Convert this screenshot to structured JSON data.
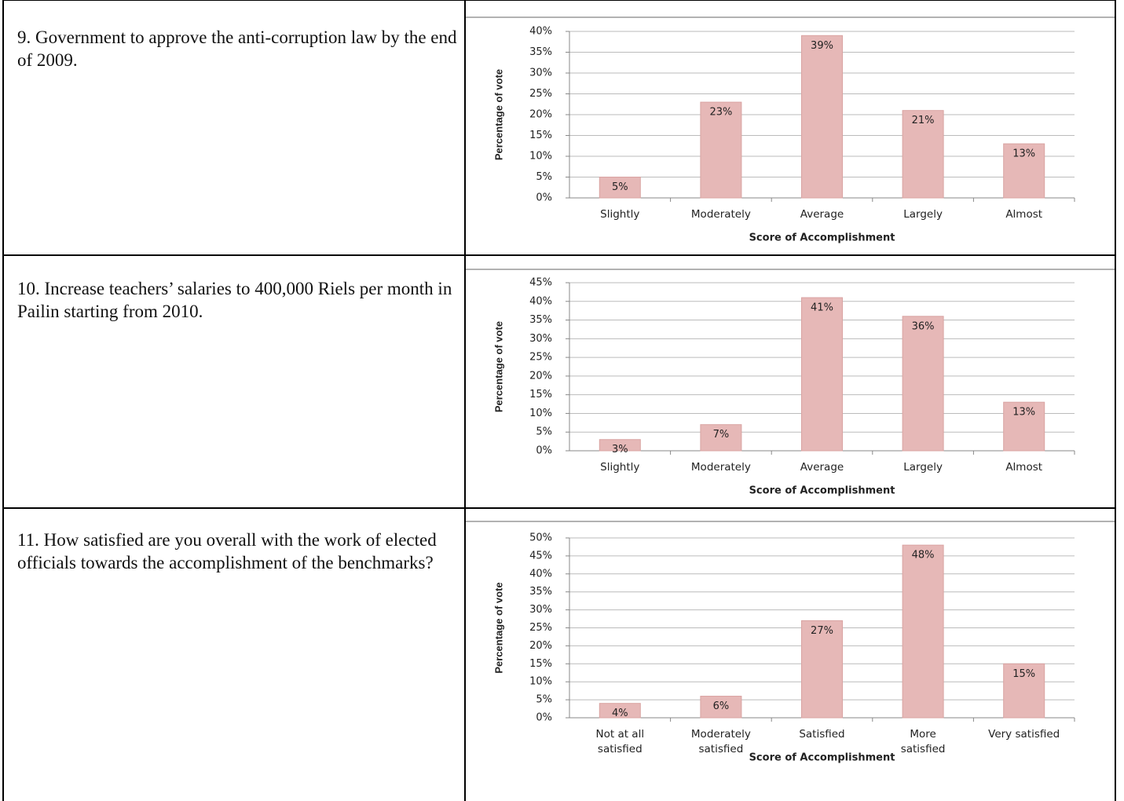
{
  "questions": [
    "9.  Government to approve the anti-corruption law by the end of 2009.",
    "10.  Increase teachers’ salaries to 400,000 Riels per month in Pailin starting from 2010.",
    "11. How satisfied are you overall with the work of elected officials towards the accomplishment of the benchmarks?"
  ],
  "chart_data": [
    {
      "type": "bar",
      "y_label": "Percentage of vote",
      "x_label": "Score of Accomplishment",
      "color": "#e6b8b7",
      "grid": true,
      "categories": [
        "Slightly",
        "Moderately",
        "Average",
        "Largely",
        "Almost"
      ],
      "values": [
        5,
        23,
        39,
        21,
        13
      ],
      "value_labels": [
        "5%",
        "23%",
        "39%",
        "21%",
        "13%"
      ],
      "ylim": [
        0,
        40
      ],
      "yticks": [
        {
          "value": 0,
          "label": "0%"
        },
        {
          "value": 5,
          "label": "5%"
        },
        {
          "value": 10,
          "label": "10%"
        },
        {
          "value": 15,
          "label": "15%"
        },
        {
          "value": 20,
          "label": "20%"
        },
        {
          "value": 25,
          "label": "25%"
        },
        {
          "value": 30,
          "label": "30%"
        },
        {
          "value": 35,
          "label": "35%"
        },
        {
          "value": 40,
          "label": "40%"
        }
      ]
    },
    {
      "type": "bar",
      "y_label": "Percentage of vote",
      "x_label": "Score of Accomplishment",
      "color": "#e6b8b7",
      "grid": true,
      "categories": [
        "Slightly",
        "Moderately",
        "Average",
        "Largely",
        "Almost"
      ],
      "values": [
        3,
        7,
        41,
        36,
        13
      ],
      "value_labels": [
        "3%",
        "7%",
        "41%",
        "36%",
        "13%"
      ],
      "ylim": [
        0,
        45
      ],
      "yticks": [
        {
          "value": 0,
          "label": "0%"
        },
        {
          "value": 5,
          "label": "5%"
        },
        {
          "value": 10,
          "label": "10%"
        },
        {
          "value": 15,
          "label": "15%"
        },
        {
          "value": 20,
          "label": "20%"
        },
        {
          "value": 25,
          "label": "25%"
        },
        {
          "value": 30,
          "label": "30%"
        },
        {
          "value": 35,
          "label": "35%"
        },
        {
          "value": 40,
          "label": "40%"
        },
        {
          "value": 45,
          "label": "45%"
        }
      ]
    },
    {
      "type": "bar",
      "y_label": "Percentage of vote",
      "x_label": "Score of Accomplishment",
      "color": "#e6b8b7",
      "grid": true,
      "categories": [
        "Not at all satisfied",
        "Moderately satisfied",
        "Satisfied",
        "More satisfied",
        "Very satisfied"
      ],
      "values": [
        4,
        6,
        27,
        48,
        15
      ],
      "value_labels": [
        "4%",
        "6%",
        "27%",
        "48%",
        "15%"
      ],
      "ylim": [
        0,
        50
      ],
      "yticks": [
        {
          "value": 0,
          "label": "0%"
        },
        {
          "value": 5,
          "label": "5%"
        },
        {
          "value": 10,
          "label": "10%"
        },
        {
          "value": 15,
          "label": "15%"
        },
        {
          "value": 20,
          "label": "20%"
        },
        {
          "value": 25,
          "label": "25%"
        },
        {
          "value": 30,
          "label": "30%"
        },
        {
          "value": 35,
          "label": "35%"
        },
        {
          "value": 40,
          "label": "40%"
        },
        {
          "value": 45,
          "label": "45%"
        },
        {
          "value": 50,
          "label": "50%"
        }
      ]
    }
  ]
}
